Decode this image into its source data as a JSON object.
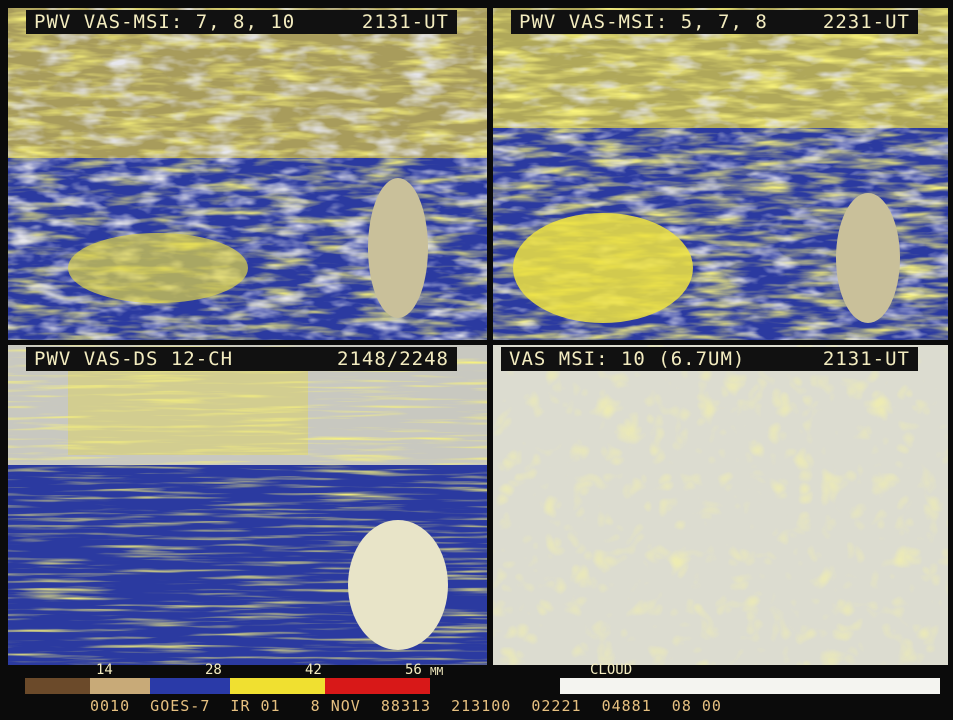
{
  "panels": [
    {
      "title": "PWV VAS-MSI: 7, 8, 10",
      "time": "2131-UT"
    },
    {
      "title": "PWV VAS-MSI: 5, 7, 8",
      "time": "2231-UT"
    },
    {
      "title": "PWV VAS-DS 12-CH",
      "time": "2148/2248"
    },
    {
      "title": "VAS MSI: 10 (6.7UM)",
      "time": "2131-UT"
    }
  ],
  "scale": {
    "ticks": [
      "14",
      "28",
      "42",
      "56"
    ],
    "unit": "MM",
    "cloud": "CLOUD"
  },
  "footer": "0010  GOES-7  IR 01   8 NOV  88313  213100  02221  04881  08 00"
}
